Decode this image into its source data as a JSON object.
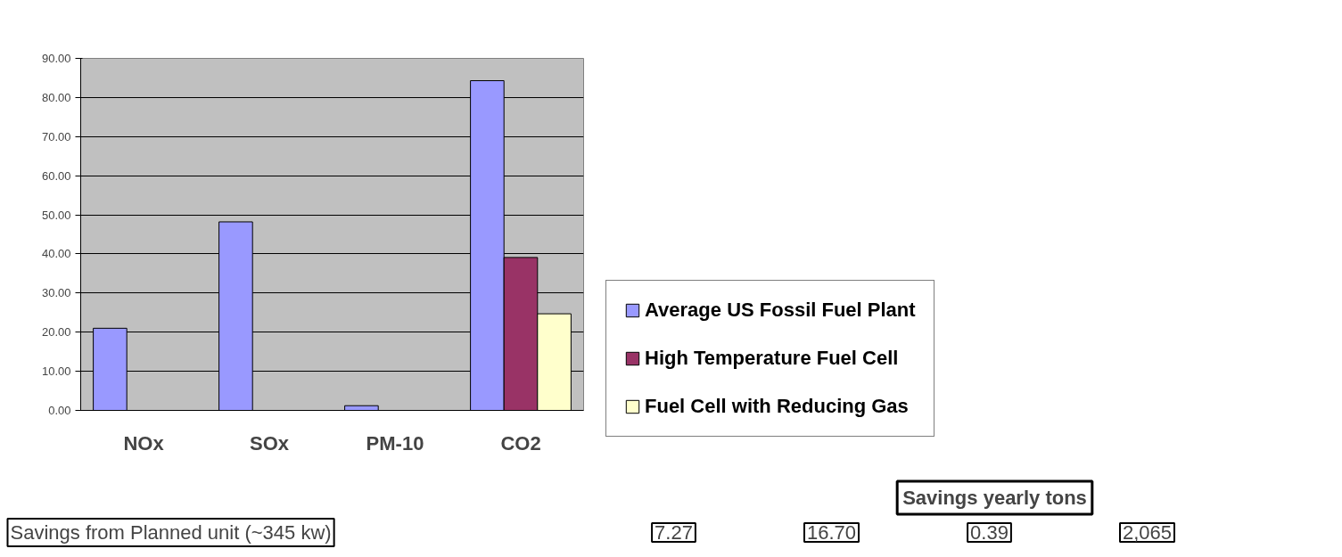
{
  "chart_data": {
    "type": "bar",
    "categories": [
      "NOx",
      "SOx",
      "PM-10",
      "CO2"
    ],
    "series": [
      {
        "name": "Average US Fossil Fuel Plant",
        "color": "#9999ff",
        "values": [
          21.0,
          48.2,
          1.2,
          84.3
        ]
      },
      {
        "name": "High Temperature Fuel Cell",
        "color": "#993366",
        "values": [
          null,
          null,
          null,
          39.1
        ]
      },
      {
        "name": "Fuel Cell with Reducing Gas",
        "color": "#ffffcc",
        "values": [
          null,
          null,
          null,
          24.7
        ]
      }
    ],
    "ylim": [
      0,
      90
    ],
    "yticks": [
      {
        "value": 0,
        "label": "0.00"
      },
      {
        "value": 10,
        "label": "10.00"
      },
      {
        "value": 20,
        "label": "20.00"
      },
      {
        "value": 30,
        "label": "30.00"
      },
      {
        "value": 40,
        "label": "40.00"
      },
      {
        "value": 50,
        "label": "50.00"
      },
      {
        "value": 60,
        "label": "60.00"
      },
      {
        "value": 70,
        "label": "70.00"
      },
      {
        "value": 80,
        "label": "80.00"
      },
      {
        "value": 90,
        "label": "90.00"
      }
    ],
    "grid": "y",
    "legend": "right",
    "annotations": [
      "Savings yearly tons",
      "Savings from Planned unit (~345 kw)",
      "7.27",
      "16.70",
      "0.39",
      "2,065"
    ]
  }
}
